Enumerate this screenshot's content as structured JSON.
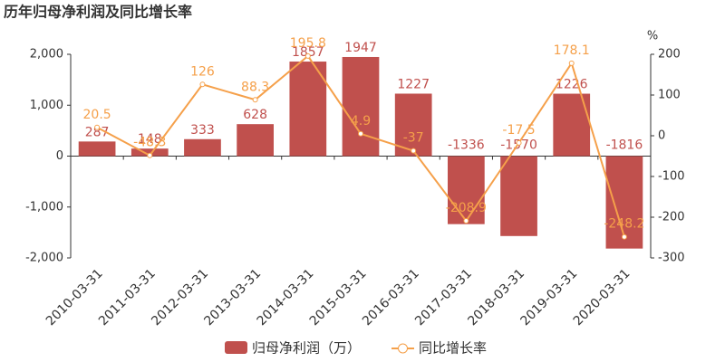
{
  "chart_data": {
    "type": "bar-line",
    "title": "历年归母净利润及同比增长率",
    "y2_label": "%",
    "categories": [
      "2010-03-31",
      "2011-03-31",
      "2012-03-31",
      "2013-03-31",
      "2014-03-31",
      "2015-03-31",
      "2016-03-31",
      "2017-03-31",
      "2018-03-31",
      "2019-03-31",
      "2020-03-31"
    ],
    "series": [
      {
        "name": "归母净利润（万）",
        "type": "bar",
        "color": "#c0504d",
        "values": [
          287,
          148,
          333,
          628,
          1857,
          1947,
          1227,
          -1336,
          -1570,
          1226,
          -1816
        ]
      },
      {
        "name": "同比增长率",
        "type": "line",
        "axis": "y2",
        "color": "#f5a04a",
        "values": [
          20.5,
          -48.3,
          126,
          88.3,
          195.8,
          4.9,
          -37,
          -208.9,
          -17.5,
          178.1,
          -248.2
        ]
      }
    ],
    "ylim": [
      -2000,
      2000
    ],
    "yticks": [
      {
        "value": -2000,
        "label": "-2,000"
      },
      {
        "value": -1000,
        "label": "-1,000"
      },
      0,
      {
        "value": 1000,
        "label": "1,000"
      },
      {
        "value": 2000,
        "label": "2,000"
      }
    ],
    "y2lim": [
      -300,
      200
    ],
    "y2ticks": [
      -300,
      -200,
      -100,
      0,
      100,
      200
    ]
  }
}
